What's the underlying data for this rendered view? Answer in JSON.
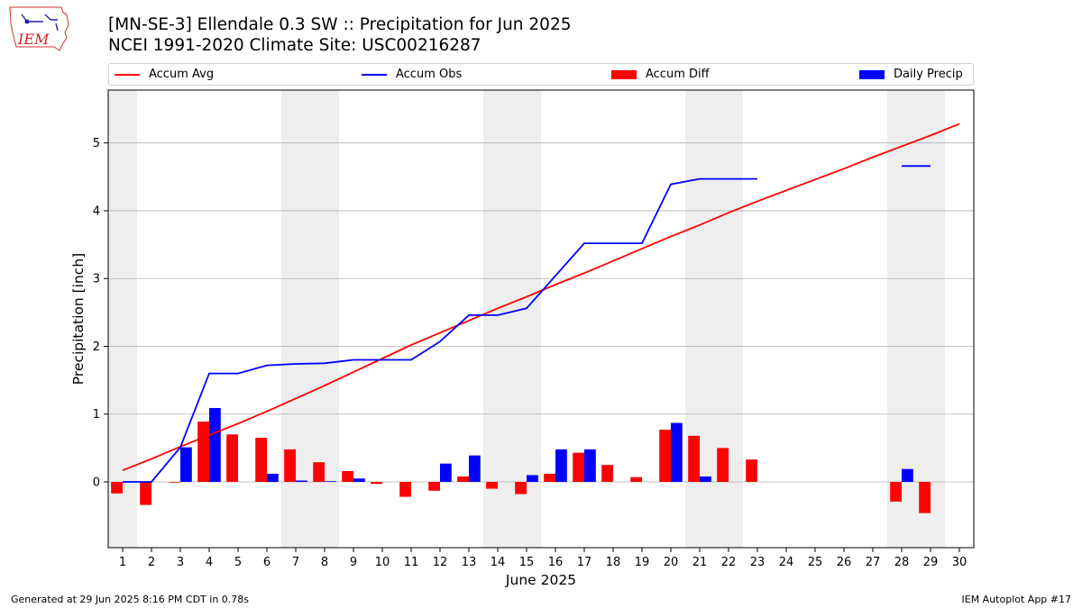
{
  "header": {
    "title_line1": "[MN-SE-3] Ellendale 0.3 SW :: Precipitation for Jun 2025",
    "title_line2": "NCEI 1991-2020 Climate Site: USC00216287"
  },
  "logo": {
    "text": "IEM",
    "icon": "iowa-state-map-logo"
  },
  "footer": {
    "left": "Generated at 29 Jun 2025 8:16 PM CDT in 0.78s",
    "right": "IEM Autoplot App #17"
  },
  "legend": [
    {
      "label": "Accum Avg",
      "kind": "line",
      "color": "#ff0000"
    },
    {
      "label": "Accum Obs",
      "kind": "line",
      "color": "#0000ff"
    },
    {
      "label": "Accum Diff",
      "kind": "bar",
      "color": "#ff0000"
    },
    {
      "label": "Daily Precip",
      "kind": "bar",
      "color": "#0000ff"
    }
  ],
  "colors": {
    "avg": "#ff0000",
    "obs": "#0000ff",
    "diff": "#ff0000",
    "daily": "#0000ff",
    "weekend_shade": "#eeeeee",
    "grid": "#b0b0b0"
  },
  "chart_data": {
    "type": "bar",
    "xlabel": "June 2025",
    "ylabel": "Precipitation [inch]",
    "xlim": [
      0.5,
      30.5
    ],
    "ylim": [
      -0.97,
      5.78
    ],
    "grid": true,
    "legend_position": "top",
    "x_ticks": [
      1,
      2,
      3,
      4,
      5,
      6,
      7,
      8,
      9,
      10,
      11,
      12,
      13,
      14,
      15,
      16,
      17,
      18,
      19,
      20,
      21,
      22,
      23,
      24,
      25,
      26,
      27,
      28,
      29,
      30
    ],
    "y_ticks": [
      0,
      1,
      2,
      3,
      4,
      5
    ],
    "weekend_shading": [
      [
        0.5,
        1.5
      ],
      [
        6.5,
        8.5
      ],
      [
        13.5,
        15.5
      ],
      [
        20.5,
        22.5
      ],
      [
        27.5,
        29.5
      ]
    ],
    "series": [
      {
        "name": "Accum Avg",
        "type": "line",
        "x": [
          1,
          2,
          3,
          4,
          5,
          6,
          7,
          8,
          9,
          10,
          11,
          12,
          13,
          14,
          15,
          16,
          17,
          18,
          19,
          20,
          21,
          22,
          23,
          24,
          25,
          26,
          27,
          28,
          29,
          30
        ],
        "values": [
          0.17,
          0.34,
          0.52,
          0.69,
          0.86,
          1.04,
          1.23,
          1.42,
          1.62,
          1.82,
          2.02,
          2.2,
          2.38,
          2.56,
          2.73,
          2.91,
          3.08,
          3.26,
          3.44,
          3.62,
          3.79,
          3.97,
          4.14,
          4.3,
          4.46,
          4.62,
          4.79,
          4.95,
          5.11,
          5.28
        ]
      },
      {
        "name": "Accum Obs",
        "type": "line",
        "x": [
          1,
          2,
          3,
          4,
          5,
          6,
          7,
          8,
          9,
          10,
          11,
          12,
          13,
          14,
          15,
          16,
          17,
          18,
          19,
          20,
          21,
          22,
          23,
          24,
          25,
          26,
          27,
          28,
          29,
          30
        ],
        "values": [
          0,
          0,
          0.51,
          1.6,
          1.6,
          1.72,
          1.74,
          1.75,
          1.8,
          1.8,
          1.8,
          2.07,
          2.46,
          2.46,
          2.56,
          3.04,
          3.52,
          3.52,
          3.52,
          4.39,
          4.47,
          4.47,
          4.47,
          null,
          null,
          null,
          null,
          4.66,
          4.66,
          null
        ]
      },
      {
        "name": "Accum Diff",
        "type": "bar",
        "x": [
          1,
          2,
          3,
          4,
          5,
          6,
          7,
          8,
          9,
          10,
          11,
          12,
          13,
          14,
          15,
          16,
          17,
          18,
          19,
          20,
          21,
          22,
          23,
          24,
          25,
          26,
          27,
          28,
          29,
          30
        ],
        "values": [
          -0.17,
          -0.34,
          -0.01,
          0.89,
          0.7,
          0.65,
          0.48,
          0.29,
          0.16,
          -0.03,
          -0.22,
          -0.13,
          0.08,
          -0.1,
          -0.18,
          0.12,
          0.43,
          0.25,
          0.07,
          0.77,
          0.68,
          0.5,
          0.33,
          null,
          null,
          null,
          null,
          -0.29,
          -0.46,
          null
        ]
      },
      {
        "name": "Daily Precip",
        "type": "bar",
        "x": [
          1,
          2,
          3,
          4,
          5,
          6,
          7,
          8,
          9,
          10,
          11,
          12,
          13,
          14,
          15,
          16,
          17,
          18,
          19,
          20,
          21,
          22,
          23,
          24,
          25,
          26,
          27,
          28,
          29,
          30
        ],
        "values": [
          0,
          0,
          0.51,
          1.09,
          0,
          0.12,
          0.02,
          0.01,
          0.05,
          0,
          0,
          0.27,
          0.39,
          0,
          0.1,
          0.48,
          0.48,
          0,
          0,
          0.87,
          0.08,
          0,
          0,
          null,
          null,
          null,
          null,
          0.19,
          0,
          null
        ]
      }
    ]
  }
}
